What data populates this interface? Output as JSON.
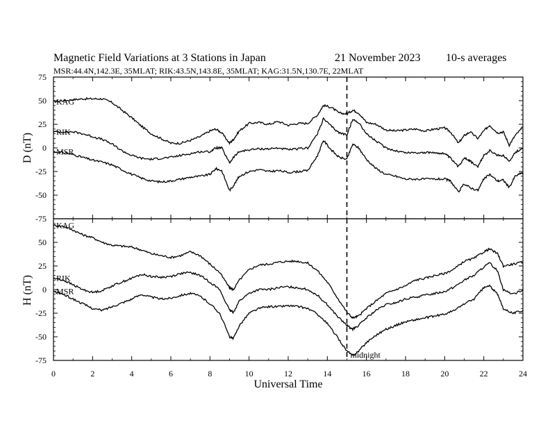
{
  "chart_data": {
    "type": "line",
    "title": "Magnetic Field Variations at 3 Stations in Japan",
    "date": "21 November 2023",
    "averaging": "10-s averages",
    "subtitle": "MSR:44.4N,142.3E, 35MLAT;  RIK:43.5N,143.8E, 35MLAT;  KAG:31.5N,130.7E, 22MLAT",
    "xlabel": "Universal Time",
    "xlim": [
      0,
      24
    ],
    "x_ticks": [
      "0",
      "2",
      "4",
      "6",
      "8",
      "10",
      "12",
      "14",
      "16",
      "18",
      "20",
      "22",
      "24"
    ],
    "midnight_marker": {
      "x": 15.0,
      "label": "midnight"
    },
    "grid": false,
    "panels": [
      {
        "ylabel": "D (nT)",
        "ylim": [
          -75,
          75
        ],
        "y_ticks": [
          "75",
          "50",
          "25",
          "0",
          "-25",
          "-50",
          "-75"
        ],
        "series": [
          {
            "name": "KAG",
            "x": [
              0,
              0.5,
              1,
              1.5,
              2,
              2.5,
              3,
              3.5,
              4,
              4.5,
              5,
              5.5,
              6,
              6.5,
              7,
              7.5,
              8,
              8.3,
              8.6,
              9,
              9.2,
              9.5,
              10,
              10.5,
              11,
              11.5,
              12,
              12.5,
              13,
              13.5,
              13.8,
              14.2,
              14.6,
              15,
              15.3,
              15.6,
              16,
              16.5,
              17,
              17.5,
              18,
              18.5,
              19,
              19.5,
              20,
              20.3,
              20.7,
              21,
              21.3,
              21.7,
              22,
              22.3,
              22.7,
              23,
              23.3,
              23.6,
              24
            ],
            "y": [
              49,
              50,
              51,
              52,
              52,
              52,
              48,
              40,
              32,
              23,
              15,
              10,
              5,
              5,
              8,
              12,
              18,
              20,
              16,
              5,
              9,
              18,
              26,
              27,
              25,
              28,
              24,
              26,
              26,
              35,
              45,
              43,
              37,
              36,
              40,
              37,
              27,
              25,
              19,
              18,
              19,
              20,
              18,
              20,
              21,
              17,
              5,
              13,
              17,
              10,
              18,
              24,
              16,
              17,
              3,
              13,
              22
            ]
          },
          {
            "name": "RIK",
            "x": [
              0,
              0.5,
              1,
              1.5,
              2,
              2.5,
              3,
              3.5,
              4,
              4.5,
              5,
              5.5,
              6,
              6.5,
              7,
              7.5,
              8,
              8.3,
              8.6,
              9,
              9.2,
              9.5,
              10,
              10.5,
              11,
              11.5,
              12,
              12.5,
              13,
              13.5,
              13.8,
              14.2,
              14.6,
              15,
              15.3,
              15.6,
              16,
              16.5,
              17,
              17.5,
              18,
              18.5,
              19,
              19.5,
              20,
              20.3,
              20.7,
              21,
              21.3,
              21.7,
              22,
              22.3,
              22.7,
              23,
              23.3,
              23.6,
              24
            ],
            "y": [
              17,
              17,
              17,
              15,
              12,
              9,
              4,
              -3,
              -8,
              -11,
              -12,
              -11,
              -10,
              -8,
              -6,
              -4,
              -4,
              0,
              0,
              -16,
              -10,
              -4,
              -2,
              -1,
              -1,
              0,
              -2,
              -1,
              0,
              15,
              31,
              23,
              16,
              14,
              30,
              27,
              15,
              7,
              0,
              -3,
              -5,
              -5,
              -5,
              -5,
              -6,
              -11,
              -20,
              -10,
              -14,
              -20,
              -8,
              -3,
              -8,
              -8,
              -14,
              -5,
              0
            ]
          },
          {
            "name": "MSR",
            "x": [
              0,
              0.5,
              1,
              1.5,
              2,
              2.5,
              3,
              3.5,
              4,
              4.5,
              5,
              5.5,
              6,
              6.5,
              7,
              7.5,
              8,
              8.3,
              8.6,
              9,
              9.2,
              9.5,
              10,
              10.5,
              11,
              11.5,
              12,
              12.5,
              13,
              13.5,
              13.8,
              14.2,
              14.6,
              15,
              15.3,
              15.6,
              16,
              16.5,
              17,
              17.5,
              18,
              18.5,
              19,
              19.5,
              20,
              20.3,
              20.7,
              21,
              21.3,
              21.7,
              22,
              22.3,
              22.7,
              23,
              23.3,
              23.6,
              24
            ],
            "y": [
              -4,
              -5,
              -7,
              -10,
              -13,
              -15,
              -18,
              -23,
              -28,
              -32,
              -35,
              -36,
              -35,
              -33,
              -31,
              -30,
              -28,
              -22,
              -24,
              -45,
              -40,
              -30,
              -25,
              -23,
              -25,
              -24,
              -26,
              -25,
              -24,
              -8,
              8,
              -2,
              -10,
              -12,
              4,
              0,
              -12,
              -22,
              -28,
              -30,
              -33,
              -33,
              -33,
              -33,
              -33,
              -35,
              -47,
              -38,
              -42,
              -45,
              -33,
              -28,
              -35,
              -34,
              -42,
              -30,
              -26
            ]
          }
        ]
      },
      {
        "ylabel": "H (nT)",
        "ylim": [
          -75,
          75
        ],
        "y_ticks": [
          "75",
          "50",
          "25",
          "0",
          "-25",
          "-50",
          "-75"
        ],
        "series": [
          {
            "name": "KAG",
            "x": [
              0,
              0.5,
              1,
              1.5,
              2,
              2.5,
              3,
              3.5,
              4,
              4.5,
              5,
              5.5,
              6,
              6.5,
              7,
              7.5,
              8,
              8.5,
              9,
              9.2,
              9.5,
              10,
              10.5,
              11,
              11.5,
              12,
              12.5,
              13,
              13.5,
              14,
              14.5,
              15,
              15.3,
              15.6,
              16,
              16.5,
              17,
              17.5,
              18,
              18.5,
              19,
              19.5,
              20,
              20.5,
              21,
              21.5,
              22,
              22.3,
              22.7,
              23,
              23.5,
              24
            ],
            "y": [
              68,
              67,
              63,
              58,
              55,
              50,
              47,
              46,
              45,
              42,
              38,
              36,
              34,
              36,
              40,
              36,
              27,
              18,
              2,
              0,
              10,
              21,
              26,
              27,
              29,
              30,
              30,
              28,
              20,
              8,
              -8,
              -24,
              -30,
              -28,
              -20,
              -12,
              -4,
              0,
              4,
              10,
              12,
              15,
              17,
              22,
              30,
              33,
              40,
              43,
              38,
              25,
              27,
              29
            ]
          },
          {
            "name": "RIK",
            "x": [
              0,
              0.5,
              1,
              1.5,
              2,
              2.5,
              3,
              3.5,
              4,
              4.5,
              5,
              5.5,
              6,
              6.5,
              7,
              7.5,
              8,
              8.5,
              9,
              9.2,
              9.5,
              10,
              10.5,
              11,
              11.5,
              12,
              12.5,
              13,
              13.5,
              14,
              14.5,
              15,
              15.3,
              15.6,
              16,
              16.5,
              17,
              17.5,
              18,
              18.5,
              19,
              19.5,
              20,
              20.5,
              21,
              21.5,
              22,
              22.3,
              22.7,
              23,
              23.5,
              24
            ],
            "y": [
              12,
              10,
              5,
              0,
              -3,
              -1,
              4,
              8,
              12,
              16,
              14,
              13,
              14,
              17,
              18,
              15,
              8,
              0,
              -22,
              -24,
              -12,
              -4,
              0,
              0,
              2,
              3,
              2,
              0,
              -6,
              -16,
              -28,
              -38,
              -42,
              -38,
              -30,
              -22,
              -16,
              -14,
              -10,
              -8,
              -6,
              -4,
              -2,
              3,
              10,
              15,
              24,
              28,
              20,
              0,
              -5,
              0
            ]
          },
          {
            "name": "MSR",
            "x": [
              0,
              0.5,
              1,
              1.5,
              2,
              2.5,
              3,
              3.5,
              4,
              4.5,
              5,
              5.5,
              6,
              6.5,
              7,
              7.5,
              8,
              8.5,
              9,
              9.2,
              9.5,
              10,
              10.5,
              11,
              11.5,
              12,
              12.5,
              13,
              13.5,
              14,
              14.5,
              15,
              15.3,
              15.6,
              16,
              16.5,
              17,
              17.5,
              18,
              18.5,
              19,
              19.5,
              20,
              20.5,
              21,
              21.5,
              22,
              22.3,
              22.7,
              23,
              23.5,
              24
            ],
            "y": [
              -2,
              -5,
              -10,
              -15,
              -20,
              -22,
              -18,
              -14,
              -10,
              -5,
              -8,
              -10,
              -9,
              -6,
              -4,
              -7,
              -15,
              -25,
              -50,
              -52,
              -38,
              -25,
              -20,
              -18,
              -18,
              -17,
              -18,
              -20,
              -26,
              -36,
              -50,
              -65,
              -70,
              -65,
              -56,
              -48,
              -42,
              -38,
              -34,
              -32,
              -30,
              -28,
              -26,
              -22,
              -15,
              -10,
              2,
              4,
              -5,
              -20,
              -25,
              -22
            ]
          }
        ]
      }
    ]
  }
}
